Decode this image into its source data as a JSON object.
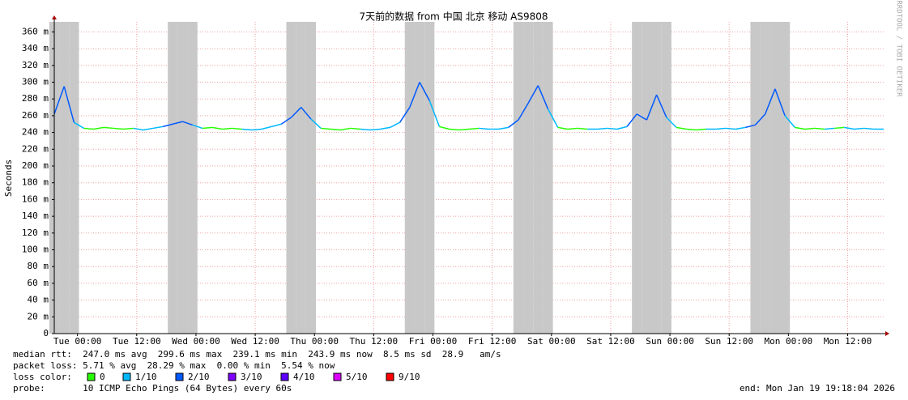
{
  "chart_data": {
    "type": "line",
    "title": "7天前的数据 from 中国 北京 移动 AS9808",
    "ylabel": "Seconds",
    "watermark": "RRDTOOL / TOBI OETIKER",
    "grid": true,
    "xlim": [
      0,
      168
    ],
    "xticks": [
      {
        "value": 4.7,
        "label": "Tue 00:00"
      },
      {
        "value": 16.7,
        "label": "Tue 12:00"
      },
      {
        "value": 28.7,
        "label": "Wed 00:00"
      },
      {
        "value": 40.7,
        "label": "Wed 12:00"
      },
      {
        "value": 52.7,
        "label": "Thu 00:00"
      },
      {
        "value": 64.7,
        "label": "Thu 12:00"
      },
      {
        "value": 76.7,
        "label": "Fri 00:00"
      },
      {
        "value": 88.7,
        "label": "Fri 12:00"
      },
      {
        "value": 100.7,
        "label": "Sat 00:00"
      },
      {
        "value": 112.7,
        "label": "Sat 12:00"
      },
      {
        "value": 124.7,
        "label": "Sun 00:00"
      },
      {
        "value": 136.7,
        "label": "Sun 12:00"
      },
      {
        "value": 148.7,
        "label": "Mon 00:00"
      },
      {
        "value": 160.7,
        "label": "Mon 12:00"
      }
    ],
    "ylim": [
      0,
      0.372
    ],
    "yticks": [
      0,
      {
        "value": 0.02,
        "label": "20 m"
      },
      {
        "value": 0.04,
        "label": "40 m"
      },
      {
        "value": 0.06,
        "label": "60 m"
      },
      {
        "value": 0.08,
        "label": "80 m"
      },
      {
        "value": 0.1,
        "label": "100 m"
      },
      {
        "value": 0.12,
        "label": "120 m"
      },
      {
        "value": 0.14,
        "label": "140 m"
      },
      {
        "value": 0.16,
        "label": "160 m"
      },
      {
        "value": 0.18,
        "label": "180 m"
      },
      {
        "value": 0.2,
        "label": "200 m"
      },
      {
        "value": 0.22,
        "label": "220 m"
      },
      {
        "value": 0.24,
        "label": "240 m"
      },
      {
        "value": 0.26,
        "label": "260 m"
      },
      {
        "value": 0.28,
        "label": "280 m"
      },
      {
        "value": 0.3,
        "label": "300 m"
      },
      {
        "value": 0.32,
        "label": "320 m"
      },
      {
        "value": 0.34,
        "label": "340 m"
      },
      {
        "value": 0.36,
        "label": "360 m"
      }
    ],
    "x": [
      0,
      2,
      4,
      6,
      8,
      10,
      12,
      14,
      16,
      18,
      20,
      22,
      24,
      26,
      28,
      30,
      32,
      34,
      36,
      38,
      40,
      42,
      44,
      46,
      48,
      50,
      52,
      54,
      56,
      58,
      60,
      62,
      64,
      66,
      68,
      70,
      72,
      74,
      76,
      78,
      80,
      82,
      84,
      86,
      88,
      90,
      92,
      94,
      96,
      98,
      100,
      102,
      104,
      106,
      108,
      110,
      112,
      114,
      116,
      118,
      120,
      122,
      124,
      126,
      128,
      130,
      132,
      134,
      136,
      138,
      140,
      142,
      144,
      146,
      148,
      150,
      152,
      154,
      156,
      158,
      160,
      162,
      164,
      166,
      168
    ],
    "series": [
      {
        "values": [
          0.262,
          0.295,
          0.252,
          0.245,
          0.244,
          0.246,
          0.245,
          0.244,
          0.245,
          0.243,
          0.245,
          0.247,
          0.25,
          0.253,
          0.249,
          0.245,
          0.246,
          0.244,
          0.245,
          0.244,
          0.243,
          0.244,
          0.247,
          0.25,
          0.258,
          0.27,
          0.256,
          0.245,
          0.244,
          0.243,
          0.245,
          0.244,
          0.243,
          0.244,
          0.246,
          0.252,
          0.27,
          0.3,
          0.278,
          0.247,
          0.244,
          0.243,
          0.244,
          0.245,
          0.244,
          0.244,
          0.246,
          0.255,
          0.275,
          0.296,
          0.268,
          0.246,
          0.244,
          0.245,
          0.244,
          0.244,
          0.245,
          0.244,
          0.247,
          0.262,
          0.255,
          0.285,
          0.258,
          0.246,
          0.244,
          0.243,
          0.244,
          0.244,
          0.245,
          0.244,
          0.246,
          0.249,
          0.262,
          0.292,
          0.26,
          0.246,
          0.244,
          0.245,
          0.244,
          0.245,
          0.246,
          0.244,
          0.245,
          0.244,
          0.244
        ],
        "loss": [
          2,
          2,
          2,
          1,
          0,
          0,
          0,
          0,
          0,
          1,
          1,
          1,
          2,
          2,
          2,
          1,
          0,
          0,
          0,
          0,
          1,
          1,
          1,
          1,
          2,
          2,
          2,
          1,
          0,
          0,
          0,
          0,
          1,
          1,
          1,
          1,
          2,
          2,
          2,
          1,
          0,
          0,
          0,
          0,
          1,
          1,
          1,
          2,
          2,
          2,
          2,
          1,
          0,
          0,
          0,
          1,
          1,
          1,
          1,
          2,
          2,
          2,
          2,
          1,
          0,
          0,
          0,
          1,
          1,
          1,
          1,
          2,
          2,
          2,
          2,
          1,
          0,
          0,
          0,
          1,
          0,
          1,
          1,
          1,
          1
        ]
      }
    ],
    "loss_legend": {
      "label": "loss color:",
      "items": [
        {
          "name": "0",
          "color": "#26ff00"
        },
        {
          "name": "1/10",
          "color": "#00b8ff"
        },
        {
          "name": "2/10",
          "color": "#0059ff"
        },
        {
          "name": "3/10",
          "color": "#7e00ff"
        },
        {
          "name": "4/10",
          "color": "#5e00ff"
        },
        {
          "name": "5/10",
          "color": "#dd00ff"
        },
        {
          "name": "9/10",
          "color": "#ff0000"
        }
      ]
    },
    "stats": [
      "median rtt:  247.0 ms avg  299.6 ms max  239.1 ms min  243.9 ms now  8.5 ms sd  28.9   am/s",
      "packet loss: 5.71 % avg  28.29 % max  0.00 % min  5.54 % now"
    ],
    "probe": "probe:       10 ICMP Echo Pings (64 Bytes) every 60s",
    "end": "end: Mon Jan 19 19:18:04 2026"
  }
}
